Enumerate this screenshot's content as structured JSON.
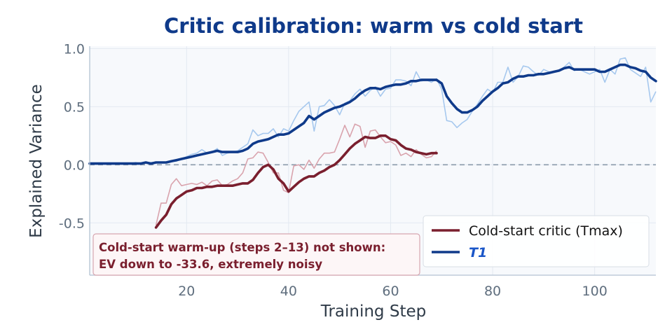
{
  "chart_data": {
    "type": "line",
    "title": "Critic calibration: warm vs cold start",
    "xlabel": "Training Step",
    "ylabel": "Explained Variance",
    "xlim": [
      1,
      112
    ],
    "ylim": [
      -0.95,
      1.02
    ],
    "xticks": [
      20,
      40,
      60,
      80,
      100
    ],
    "xtick_labels": [
      "20",
      "40",
      "60",
      "80",
      "100"
    ],
    "yticks": [
      -0.5,
      0.0,
      0.5,
      1.0
    ],
    "ytick_labels": [
      "-0.5",
      "0.0",
      "0.5",
      "1.0"
    ],
    "grid": true,
    "reference_line": {
      "y": 0.0,
      "style": "dashed",
      "color": "#8a9aaa"
    },
    "legend": {
      "position": "lower-right"
    },
    "annotation": {
      "lines": [
        "Cold-start warm-up (steps 2–13) not shown:",
        "EV down to -33.6, extremely noisy"
      ],
      "position": "lower-left"
    },
    "series": [
      {
        "name": "Cold-start critic (Tmax)",
        "legend_style": "normal",
        "color": "#7a1f2e",
        "raw_color": "#d9a3ad",
        "x": [
          14,
          15,
          16,
          17,
          18,
          19,
          20,
          21,
          22,
          23,
          24,
          25,
          26,
          27,
          28,
          29,
          30,
          31,
          32,
          33,
          34,
          35,
          36,
          37,
          38,
          39,
          40,
          41,
          42,
          43,
          44,
          45,
          46,
          47,
          48,
          49,
          50,
          51,
          52,
          53,
          54,
          55,
          56,
          57,
          58,
          59,
          60,
          61,
          62,
          63,
          64,
          65,
          66,
          67,
          68,
          69
        ],
        "raw": [
          -0.52,
          -0.33,
          -0.33,
          -0.17,
          -0.12,
          -0.18,
          -0.17,
          -0.16,
          -0.17,
          -0.15,
          -0.18,
          -0.14,
          -0.13,
          -0.18,
          -0.17,
          -0.14,
          -0.12,
          -0.07,
          0.05,
          0.06,
          0.11,
          0.1,
          0.02,
          -0.07,
          -0.07,
          -0.22,
          -0.24,
          -0.01,
          0.0,
          -0.04,
          0.04,
          -0.03,
          0.05,
          0.1,
          0.1,
          0.11,
          0.22,
          0.34,
          0.24,
          0.35,
          0.33,
          0.15,
          0.29,
          0.3,
          0.24,
          0.19,
          0.2,
          0.17,
          0.08,
          0.1,
          0.07,
          0.13,
          0.09,
          0.06,
          0.07,
          0.12
        ],
        "smoothed": [
          -0.54,
          -0.48,
          -0.43,
          -0.34,
          -0.29,
          -0.26,
          -0.23,
          -0.22,
          -0.2,
          -0.2,
          -0.19,
          -0.19,
          -0.18,
          -0.18,
          -0.18,
          -0.18,
          -0.17,
          -0.16,
          -0.16,
          -0.13,
          -0.07,
          -0.02,
          0.0,
          -0.04,
          -0.12,
          -0.16,
          -0.23,
          -0.19,
          -0.15,
          -0.12,
          -0.1,
          -0.1,
          -0.07,
          -0.05,
          -0.02,
          0.0,
          0.04,
          0.09,
          0.14,
          0.18,
          0.21,
          0.24,
          0.23,
          0.23,
          0.25,
          0.25,
          0.22,
          0.21,
          0.17,
          0.14,
          0.13,
          0.11,
          0.1,
          0.09,
          0.1,
          0.1
        ]
      },
      {
        "name": "T1",
        "legend_style": "bold-italic-blue",
        "color": "#0f3a8a",
        "raw_color": "#a6c8ee",
        "x": [
          1,
          2,
          3,
          4,
          5,
          6,
          7,
          8,
          9,
          10,
          11,
          12,
          13,
          14,
          15,
          16,
          17,
          18,
          19,
          20,
          21,
          22,
          23,
          24,
          25,
          26,
          27,
          28,
          29,
          30,
          31,
          32,
          33,
          34,
          35,
          36,
          37,
          38,
          39,
          40,
          41,
          42,
          43,
          44,
          45,
          46,
          47,
          48,
          49,
          50,
          51,
          52,
          53,
          54,
          55,
          56,
          57,
          58,
          59,
          60,
          61,
          62,
          63,
          64,
          65,
          66,
          67,
          68,
          69,
          70,
          71,
          72,
          73,
          74,
          75,
          76,
          77,
          78,
          79,
          80,
          81,
          82,
          83,
          84,
          85,
          86,
          87,
          88,
          89,
          90,
          91,
          92,
          93,
          94,
          95,
          96,
          97,
          98,
          99,
          100,
          101,
          102,
          103,
          104,
          105,
          106,
          107,
          108,
          109,
          110,
          111,
          112
        ],
        "raw": [
          0.01,
          0.01,
          0.01,
          0.01,
          0.01,
          0.01,
          0.01,
          0.01,
          0.01,
          0.02,
          0.01,
          0.02,
          0.02,
          0.02,
          0.02,
          0.02,
          0.03,
          0.03,
          0.05,
          0.07,
          0.09,
          0.1,
          0.13,
          0.1,
          0.11,
          0.14,
          0.08,
          0.1,
          0.11,
          0.12,
          0.15,
          0.18,
          0.3,
          0.25,
          0.27,
          0.27,
          0.31,
          0.24,
          0.31,
          0.29,
          0.38,
          0.46,
          0.5,
          0.54,
          0.29,
          0.5,
          0.51,
          0.56,
          0.51,
          0.43,
          0.53,
          0.55,
          0.61,
          0.65,
          0.59,
          0.64,
          0.67,
          0.59,
          0.65,
          0.66,
          0.73,
          0.73,
          0.72,
          0.68,
          0.8,
          0.72,
          0.73,
          0.71,
          0.74,
          0.65,
          0.38,
          0.37,
          0.32,
          0.36,
          0.39,
          0.46,
          0.52,
          0.59,
          0.65,
          0.62,
          0.71,
          0.71,
          0.84,
          0.71,
          0.76,
          0.85,
          0.84,
          0.8,
          0.77,
          0.82,
          0.8,
          0.8,
          0.81,
          0.84,
          0.88,
          0.81,
          0.82,
          0.8,
          0.78,
          0.8,
          0.82,
          0.71,
          0.82,
          0.78,
          0.91,
          0.92,
          0.82,
          0.79,
          0.76,
          0.84,
          0.54,
          0.63
        ],
        "smoothed": [
          0.01,
          0.01,
          0.01,
          0.01,
          0.01,
          0.01,
          0.01,
          0.01,
          0.01,
          0.01,
          0.01,
          0.02,
          0.01,
          0.02,
          0.02,
          0.02,
          0.03,
          0.04,
          0.05,
          0.06,
          0.07,
          0.08,
          0.09,
          0.1,
          0.11,
          0.12,
          0.11,
          0.11,
          0.11,
          0.11,
          0.12,
          0.14,
          0.18,
          0.2,
          0.21,
          0.22,
          0.24,
          0.26,
          0.26,
          0.27,
          0.3,
          0.33,
          0.36,
          0.42,
          0.39,
          0.42,
          0.45,
          0.47,
          0.49,
          0.5,
          0.52,
          0.54,
          0.57,
          0.61,
          0.64,
          0.66,
          0.66,
          0.65,
          0.67,
          0.68,
          0.69,
          0.69,
          0.7,
          0.72,
          0.72,
          0.73,
          0.73,
          0.73,
          0.73,
          0.7,
          0.59,
          0.53,
          0.48,
          0.45,
          0.45,
          0.47,
          0.5,
          0.55,
          0.59,
          0.63,
          0.66,
          0.7,
          0.71,
          0.74,
          0.76,
          0.76,
          0.77,
          0.77,
          0.78,
          0.78,
          0.79,
          0.8,
          0.81,
          0.83,
          0.84,
          0.82,
          0.82,
          0.82,
          0.82,
          0.82,
          0.8,
          0.8,
          0.82,
          0.84,
          0.86,
          0.86,
          0.84,
          0.83,
          0.81,
          0.8,
          0.75,
          0.72
        ]
      }
    ]
  }
}
